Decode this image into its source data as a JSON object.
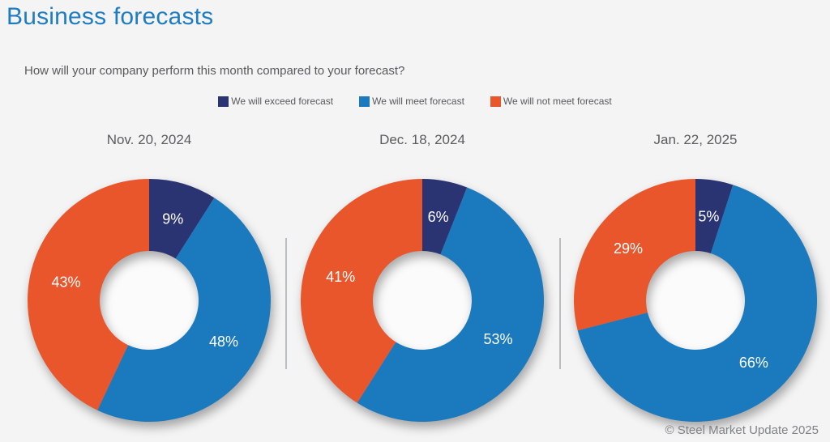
{
  "page": {
    "title": "Business forecasts",
    "question": "How will your company perform this month compared to your forecast?",
    "footer": "© Steel Market Update 2025"
  },
  "colors": {
    "exceed": "#2b3472",
    "meet": "#1b7abe",
    "not_meet": "#e9562c",
    "title": "#1e7cc1",
    "text": "#58595b",
    "muted": "#808285",
    "divider": "#bcbdbe",
    "background": "#f4f4f5",
    "hole": "#fbfbfc",
    "slice_label": "#ffffff"
  },
  "legend": {
    "items": [
      {
        "label": "We will exceed forecast",
        "color_key": "exceed"
      },
      {
        "label": "We will meet forecast",
        "color_key": "meet"
      },
      {
        "label": "We will not meet forecast",
        "color_key": "not_meet"
      }
    ]
  },
  "chart_data": {
    "type": "pie",
    "subtype": "donut",
    "title": "Business forecasts",
    "question": "How will your company perform this month compared to your forecast?",
    "unit": "%",
    "start_angle_deg": 0,
    "direction": "clockwise",
    "legend_position": "top",
    "series_order": [
      "We will exceed forecast",
      "We will meet forecast",
      "We will not meet forecast"
    ],
    "charts": [
      {
        "date": "Nov. 20, 2024",
        "slices": [
          {
            "series": "We will exceed forecast",
            "color_key": "exceed",
            "value": 9
          },
          {
            "series": "We will meet forecast",
            "color_key": "meet",
            "value": 48
          },
          {
            "series": "We will not meet forecast",
            "color_key": "not_meet",
            "value": 43
          }
        ]
      },
      {
        "date": "Dec. 18, 2024",
        "slices": [
          {
            "series": "We will exceed forecast",
            "color_key": "exceed",
            "value": 6
          },
          {
            "series": "We will meet forecast",
            "color_key": "meet",
            "value": 53
          },
          {
            "series": "We will not meet forecast",
            "color_key": "not_meet",
            "value": 41
          }
        ]
      },
      {
        "date": "Jan. 22, 2025",
        "slices": [
          {
            "series": "We will exceed forecast",
            "color_key": "exceed",
            "value": 5
          },
          {
            "series": "We will meet forecast",
            "color_key": "meet",
            "value": 66
          },
          {
            "series": "We will not meet forecast",
            "color_key": "not_meet",
            "value": 29
          }
        ]
      }
    ]
  }
}
